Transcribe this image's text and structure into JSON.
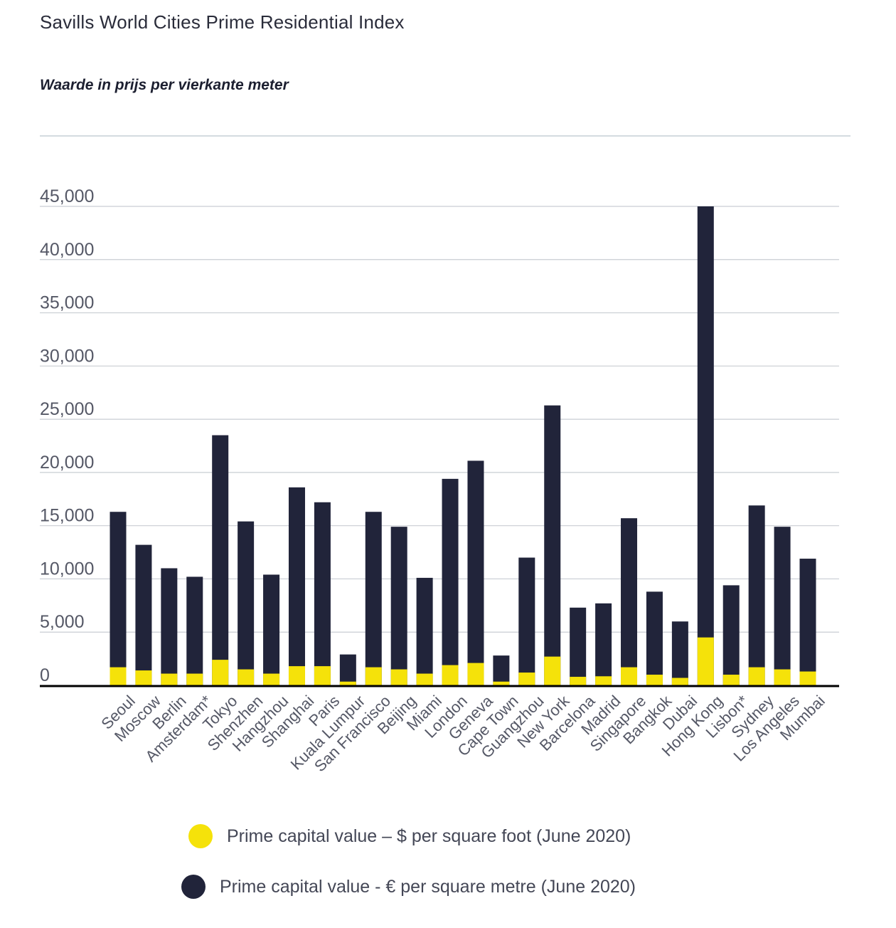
{
  "chart_data": {
    "type": "bar",
    "stacked": false,
    "overlay": true,
    "title": "Savills World Cities Prime Residential Index",
    "subtitle": "Waarde in prijs per vierkante meter",
    "ylim": [
      0,
      45000
    ],
    "yticks": [
      "0",
      "5,000",
      "10,000",
      "15,000",
      "20,000",
      "25,000",
      "30,000",
      "35,000",
      "40,000",
      "45,000"
    ],
    "ytick_values": [
      0,
      5000,
      10000,
      15000,
      20000,
      25000,
      30000,
      35000,
      40000,
      45000
    ],
    "grid": true,
    "legend_position": "bottom",
    "categories": [
      "Seoul",
      "Moscow",
      "Berlin",
      "Amsterdam*",
      "Tokyo",
      "Shenzhen",
      "Hangzhou",
      "Shanghai",
      "Paris",
      "Kuala Lumpur",
      "San Francisco",
      "Beijing",
      "Miami",
      "London",
      "Geneva",
      "Cape Town",
      "Guangzhou",
      "New York",
      "Barcelona",
      "Madrid",
      "Singapore",
      "Bangkok",
      "Dubai",
      "Hong Kong",
      "Lisbon*",
      "Sydney",
      "Los Angeles",
      "Mumbai"
    ],
    "series": [
      {
        "name": "Prime capital value - € per square metre (June 2020)",
        "color": "#21243a",
        "values": [
          16300,
          13200,
          11000,
          10200,
          23500,
          15400,
          10400,
          18600,
          17200,
          2900,
          16300,
          14900,
          10100,
          19400,
          21100,
          2800,
          12000,
          26300,
          7300,
          7700,
          15700,
          8800,
          6000,
          45000,
          9400,
          16900,
          14900,
          11900
        ]
      },
      {
        "name": "Prime capital value - $ per square foot (June 2020)",
        "color": "#f5e20a",
        "values": [
          1700,
          1400,
          1100,
          1100,
          2400,
          1500,
          1100,
          1800,
          1800,
          350,
          1700,
          1500,
          1100,
          1900,
          2100,
          350,
          1200,
          2700,
          800,
          850,
          1700,
          1000,
          700,
          4500,
          1000,
          1700,
          1500,
          1300
        ]
      }
    ]
  },
  "legend": {
    "dollar_label": "Prime capital value – $ per square foot (June 2020)",
    "euro_label": "Prime capital value - € per square metre (June 2020)",
    "dollar_color": "#f5e20a",
    "euro_color": "#21243a"
  }
}
